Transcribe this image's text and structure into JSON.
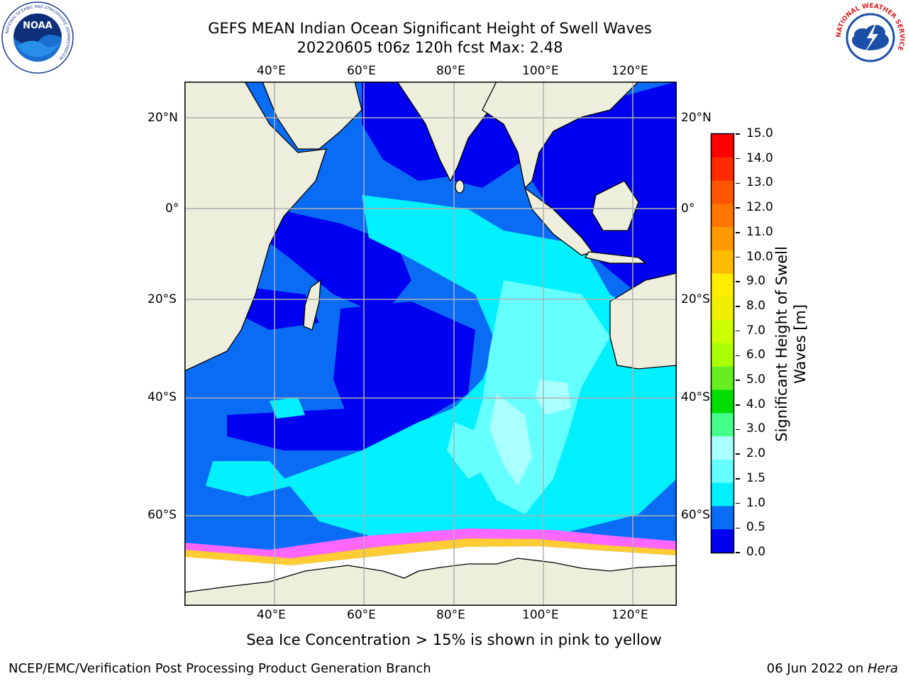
{
  "title": {
    "line1": "GEFS MEAN Indian Ocean Significant Height of Swell Waves",
    "line2": "20220605 t06z 120h fcst   Max: 2.48"
  },
  "logos": {
    "left": "NOAA",
    "left_ring_top": "NATIONAL OCEANIC AND ATMOSPHERIC ADMINISTRATION",
    "left_ring_bottom": "U.S. DEPARTMENT OF COMMERCE",
    "right_ring": "NATIONAL WEATHER SERVICE"
  },
  "map": {
    "lon_labels": [
      "40°E",
      "60°E",
      "80°E",
      "100°E",
      "120°E"
    ],
    "lat_labels_left": [
      "20°N",
      "0°",
      "20°S",
      "40°S",
      "60°S"
    ],
    "lat_labels_right": [
      "20°N",
      "0°",
      "20°S",
      "40°S",
      "60°S"
    ],
    "lon_range": [
      20,
      130
    ],
    "lat_range": [
      28,
      -88
    ],
    "colors": {
      "land": "#eeeedd",
      "ocean_low": "#0000f0",
      "ocean_mid": "#0a6cf5",
      "ocean_1_5": "#00f0ff",
      "ocean_2_0": "#66ffff",
      "ocean_2_5": "#aaffff",
      "ice_pink": "#ff66ff",
      "ice_yellow": "#ffcc33",
      "ice_white": "#ffffff"
    }
  },
  "colorbar": {
    "label_line1": "Significant Height of Swell",
    "label_line2": "Waves [m]",
    "ticks": [
      "15.0",
      "14.0",
      "13.0",
      "12.0",
      "11.0",
      "10.0",
      "9.0",
      "8.0",
      "7.0",
      "6.0",
      "5.0",
      "4.0",
      "3.0",
      "2.0",
      "1.5",
      "1.0",
      "0.5",
      "0.0"
    ],
    "colors_top_to_bottom": [
      "#ff0000",
      "#ff2a00",
      "#ff5500",
      "#ff7700",
      "#ff9900",
      "#ffbb00",
      "#ffee00",
      "#eeee00",
      "#ccff00",
      "#aaff00",
      "#66ee22",
      "#00dd00",
      "#44ff88",
      "#aaffff",
      "#66ffff",
      "#00f0ff",
      "#0a6cf5",
      "#0000f0"
    ]
  },
  "caption": "Sea Ice Concentration > 15% is shown in pink to yellow",
  "footer": {
    "left": "NCEP/EMC/Verification Post Processing Product Generation Branch",
    "right_prefix": "06 Jun 2022 on ",
    "right_italic": "Hera"
  }
}
